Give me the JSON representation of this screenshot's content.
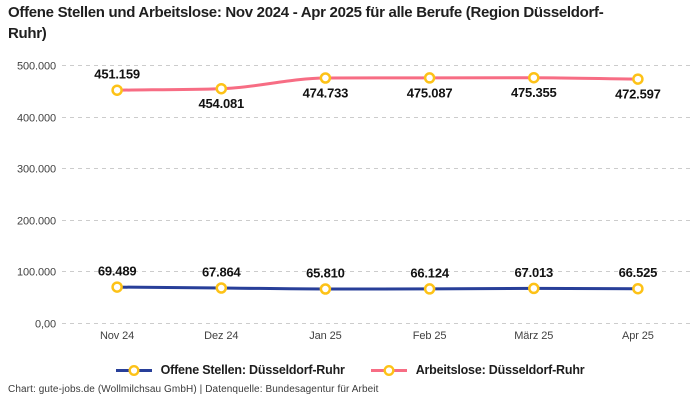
{
  "title": "Offene Stellen und Arbeitslose: Nov 2024 - Apr 2025 für alle Berufe (Region Düsseldorf-Ruhr)",
  "footer": "Chart: gute-jobs.de (Wollmilchsau GmbH) | Datenquelle: Bundesagentur für Arbeit",
  "chart_data": {
    "type": "line",
    "categories": [
      "Nov 24",
      "Dez 24",
      "Jan 25",
      "Feb 25",
      "März 25",
      "Apr 25"
    ],
    "series": [
      {
        "name": "Offene Stellen: Düsseldorf-Ruhr",
        "color": "#283F99",
        "values": [
          69489,
          67864,
          65810,
          66124,
          67013,
          66525
        ],
        "display_values": [
          "69.489",
          "67.864",
          "65.810",
          "66.124",
          "67.013",
          "66.525"
        ],
        "label_placement": [
          "above",
          "above",
          "above",
          "above",
          "above",
          "above"
        ]
      },
      {
        "name": "Arbeitslose: Düsseldorf-Ruhr",
        "color": "#F76D84",
        "values": [
          451159,
          454081,
          474733,
          475087,
          475355,
          472597
        ],
        "display_values": [
          "451.159",
          "454.081",
          "474.733",
          "475.087",
          "475.355",
          "472.597"
        ],
        "label_placement": [
          "above",
          "below",
          "below",
          "below",
          "below",
          "below"
        ]
      }
    ],
    "marker_color": "#FDC217",
    "marker_fill": "#FFFFFF",
    "grid_color": "#CCCCCC",
    "grid": "dashed-horizontal",
    "legend_position": "bottom",
    "ylim": [
      0,
      500000
    ],
    "y_ticks": [
      {
        "label": "500.000",
        "value": 500000
      },
      {
        "label": "400.000",
        "value": 400000
      },
      {
        "label": "300.000",
        "value": 300000
      },
      {
        "label": "200.000",
        "value": 200000
      },
      {
        "label": "100.000",
        "value": 100000
      },
      {
        "label": "0,00",
        "value": 0
      }
    ]
  }
}
